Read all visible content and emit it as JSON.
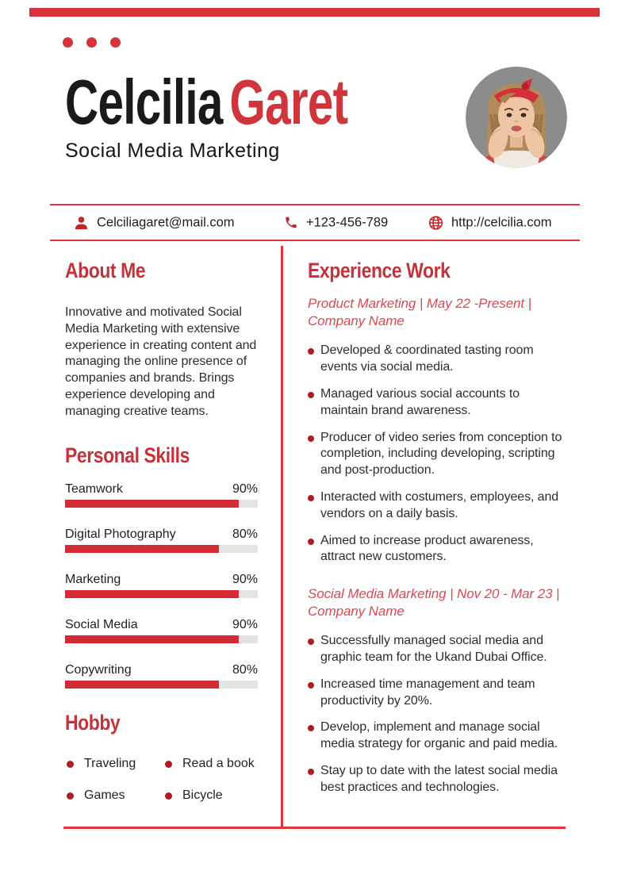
{
  "colors": {
    "accent": "#d7323a",
    "heading_red": "#c3333b",
    "name_red": "#ce363c",
    "job_title_red": "#dc4850",
    "bullet_red": "#b11a22",
    "bar_fill_red": "#d32a33",
    "bar_track_gray": "#e3e3e3",
    "text_dark": "#2d2d2d"
  },
  "header": {
    "first_name": "Celcilia",
    "last_name": "Garet",
    "subtitle": "Social Media Marketing"
  },
  "contact": {
    "email": "Celciliagaret@mail.com",
    "phone": "+123-456-789",
    "website": "http://celcilia.com"
  },
  "about": {
    "title": "About Me",
    "text": "Innovative and motivated Social Media Marketing with extensive experience in creating content and managing the online presence of companies and brands. Brings experience developing and managing creative teams."
  },
  "skills": {
    "title": "Personal Skills",
    "items": [
      {
        "label": "Teamwork",
        "percent_label": "90%",
        "value": 90
      },
      {
        "label": "Digital Photography",
        "percent_label": "80%",
        "value": 80
      },
      {
        "label": "Marketing",
        "percent_label": "90%",
        "value": 90
      },
      {
        "label": "Social Media",
        "percent_label": "90%",
        "value": 90
      },
      {
        "label": "Copywriting",
        "percent_label": "80%",
        "value": 80
      }
    ]
  },
  "hobby": {
    "title": "Hobby",
    "items": [
      "Traveling",
      "Read a book",
      "Games",
      "Bicycle"
    ]
  },
  "experience": {
    "title": "Experience Work",
    "jobs": [
      {
        "heading": "Product Marketing | May 22 -Present | Company Name",
        "bullets": [
          "Developed & coordinated tasting room events via social media.",
          "Managed various social accounts to maintain brand awareness.",
          "Producer of video series from conception to completion, including developing, scripting and post-production.",
          "Interacted with costumers, employees, and vendors on a daily basis.",
          "Aimed to increase product awareness, attract new customers."
        ]
      },
      {
        "heading": "Social Media Marketing | Nov 20 - Mar 23 | Company Name",
        "bullets": [
          "Successfully managed social media and graphic team for the Ukand Dubai Office.",
          "Increased time management and team productivity by 20%.",
          "Develop, implement and manage social media strategy for organic and paid media.",
          "Stay up to date with the latest social media best practices and technologies."
        ]
      }
    ]
  }
}
